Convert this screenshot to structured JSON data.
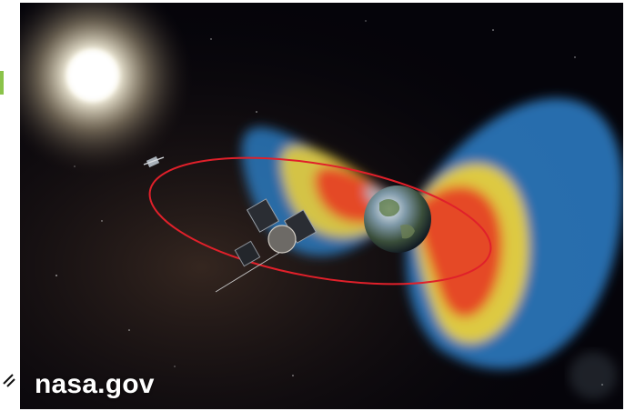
{
  "image": {
    "credit_text": "nasa.gov",
    "subjects": [
      "sun-icon",
      "earth-icon",
      "spacecraft-icon",
      "orbit-path",
      "radiation-belts"
    ],
    "colors": {
      "space": "#05040a",
      "belt_outer": "#2f88d6",
      "belt_mid": "#f2d335",
      "belt_inner": "#e53b22",
      "orbit": "#e0202a",
      "sun": "#ffffff",
      "accent_green": "#8bc34a"
    }
  }
}
